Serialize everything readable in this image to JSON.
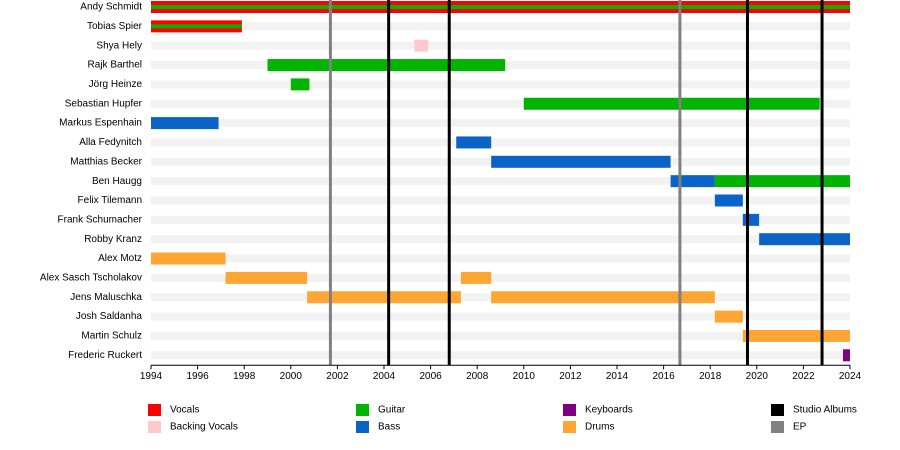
{
  "chart_data": {
    "type": "timeline",
    "xlim": [
      1994,
      2024
    ],
    "xticks": [
      1994,
      1996,
      1998,
      2000,
      2002,
      2004,
      2006,
      2008,
      2010,
      2012,
      2014,
      2016,
      2018,
      2020,
      2022,
      2024
    ],
    "roles": [
      {
        "name": "Vocals",
        "color": "#ff0000"
      },
      {
        "name": "Backing Vocals",
        "color": "#ffc8cc"
      },
      {
        "name": "Guitar",
        "color": "#00b400"
      },
      {
        "name": "Bass",
        "color": "#0a64c8"
      },
      {
        "name": "Keyboards",
        "color": "#800080"
      },
      {
        "name": "Drums",
        "color": "#ffa533"
      }
    ],
    "events": [
      {
        "name": "Studio Albums",
        "color": "#000000",
        "dates": [
          2004.2,
          2006.8,
          2019.6,
          2022.8
        ]
      },
      {
        "name": "EP",
        "color": "#808080",
        "dates": [
          2001.7,
          2016.7
        ]
      }
    ],
    "members": [
      {
        "name": "Andy Schmidt",
        "periods": [
          {
            "role": "Vocals",
            "start": 1994,
            "end": 2024
          },
          {
            "role": "Guitar",
            "start": 1994,
            "end": 2024
          }
        ]
      },
      {
        "name": "Tobias Spier",
        "periods": [
          {
            "role": "Vocals",
            "start": 1994,
            "end": 1997.9
          },
          {
            "role": "Guitar",
            "start": 1994,
            "end": 1997.9
          }
        ]
      },
      {
        "name": "Shya Hely",
        "periods": [
          {
            "role": "Backing Vocals",
            "start": 2005.3,
            "end": 2005.9
          }
        ]
      },
      {
        "name": "Rajk Barthel",
        "periods": [
          {
            "role": "Guitar",
            "start": 1999,
            "end": 2009.2
          }
        ]
      },
      {
        "name": "Jörg Heinze",
        "periods": [
          {
            "role": "Guitar",
            "start": 2000,
            "end": 2000.8
          }
        ]
      },
      {
        "name": "Sebastian Hupfer",
        "periods": [
          {
            "role": "Guitar",
            "start": 2010,
            "end": 2022.7
          }
        ]
      },
      {
        "name": "Markus Espenhain",
        "periods": [
          {
            "role": "Bass",
            "start": 1994,
            "end": 1996.9
          }
        ]
      },
      {
        "name": "Alla Fedynitch",
        "periods": [
          {
            "role": "Bass",
            "start": 2007.1,
            "end": 2008.6
          }
        ]
      },
      {
        "name": "Matthias Becker",
        "periods": [
          {
            "role": "Bass",
            "start": 2008.6,
            "end": 2016.3
          }
        ]
      },
      {
        "name": "Ben Haugg",
        "periods": [
          {
            "role": "Bass",
            "start": 2016.3,
            "end": 2018.2
          },
          {
            "role": "Guitar",
            "start": 2018.2,
            "end": 2024
          }
        ]
      },
      {
        "name": "Felix Tilemann",
        "periods": [
          {
            "role": "Bass",
            "start": 2018.2,
            "end": 2019.4
          }
        ]
      },
      {
        "name": "Frank Schumacher",
        "periods": [
          {
            "role": "Bass",
            "start": 2019.4,
            "end": 2020.1
          }
        ]
      },
      {
        "name": "Robby Kranz",
        "periods": [
          {
            "role": "Bass",
            "start": 2020.1,
            "end": 2024
          }
        ]
      },
      {
        "name": "Alex Motz",
        "periods": [
          {
            "role": "Drums",
            "start": 1994,
            "end": 1997.2
          }
        ]
      },
      {
        "name": "Alex Sasch Tscholakov",
        "periods": [
          {
            "role": "Drums",
            "start": 1997.2,
            "end": 2000.7
          },
          {
            "role": "Drums",
            "start": 2007.3,
            "end": 2008.6
          }
        ]
      },
      {
        "name": "Jens Maluschka",
        "periods": [
          {
            "role": "Drums",
            "start": 2000.7,
            "end": 2007.3
          },
          {
            "role": "Drums",
            "start": 2008.6,
            "end": 2018.2
          }
        ]
      },
      {
        "name": "Josh Saldanha",
        "periods": [
          {
            "role": "Drums",
            "start": 2018.2,
            "end": 2019.4
          }
        ]
      },
      {
        "name": "Martin Schulz",
        "periods": [
          {
            "role": "Drums",
            "start": 2019.4,
            "end": 2024
          }
        ]
      },
      {
        "name": "Frederic Ruckert",
        "periods": [
          {
            "role": "Keyboards",
            "start": 2023.7,
            "end": 2024
          }
        ]
      }
    ]
  }
}
